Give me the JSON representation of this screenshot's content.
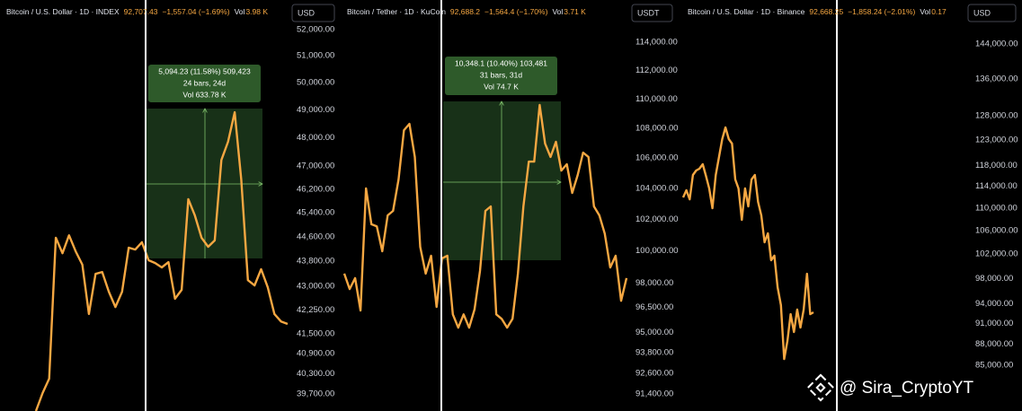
{
  "chart_data": [
    {
      "type": "line",
      "title": "Bitcoin / U.S. Dollar · 1D · INDEX",
      "price": "92,707.43",
      "change": "−1,557.04 (−1.69%)",
      "volume_label": "Vol",
      "volume": "3.98 K",
      "currency": "USD",
      "color": "#f5a742",
      "log_scale": true,
      "ylim": [
        39200,
        53150
      ],
      "yticks": [
        {
          "value": 52000,
          "label": "52,000.00"
        },
        {
          "value": 51000,
          "label": "51,000.00"
        },
        {
          "value": 50000,
          "label": "50,000.00"
        },
        {
          "value": 49000,
          "label": "49,000.00"
        },
        {
          "value": 48000,
          "label": "48,000.00"
        },
        {
          "value": 47000,
          "label": "47,000.00"
        },
        {
          "value": 46200,
          "label": "46,200.00"
        },
        {
          "value": 45400,
          "label": "45,400.00"
        },
        {
          "value": 44600,
          "label": "44,600.00"
        },
        {
          "value": 43800,
          "label": "43,800.00"
        },
        {
          "value": 43000,
          "label": "43,000.00"
        },
        {
          "value": 42250,
          "label": "42,250.00"
        },
        {
          "value": 41500,
          "label": "41,500.00"
        },
        {
          "value": 40900,
          "label": "40,900.00"
        },
        {
          "value": 40300,
          "label": "40,300.00"
        },
        {
          "value": 39700,
          "label": "39,700.00"
        }
      ],
      "values": [
        39200,
        39725,
        40150,
        44570,
        44060,
        44650,
        44120,
        43690,
        42120,
        43390,
        43450,
        42820,
        42340,
        42820,
        44240,
        44180,
        44420,
        43830,
        43740,
        43600,
        43770,
        42600,
        42880,
        45860,
        45310,
        44570,
        44270,
        44480,
        47210,
        47850,
        48910,
        46530,
        43190,
        43020,
        43540,
        42960,
        42120,
        41890,
        41810
      ],
      "measure": [
        "5,094.23 (11.58%) 509,423",
        "24 bars, 24d",
        "Vol 633.78 K"
      ]
    },
    {
      "type": "line",
      "title": "Bitcoin / Tether · 1D · KuCoin",
      "price": "92,688.2",
      "change": "−1,564.4 (−1.70%)",
      "volume_label": "Vol",
      "volume": "3.71 K",
      "currency": "USDT",
      "color": "#f5a742",
      "log_scale": true,
      "ylim": [
        90430,
        117060
      ],
      "yticks": [
        {
          "value": 114000,
          "label": "114,000.00"
        },
        {
          "value": 112000,
          "label": "112,000.00"
        },
        {
          "value": 110000,
          "label": "110,000.00"
        },
        {
          "value": 108000,
          "label": "108,000.00"
        },
        {
          "value": 106000,
          "label": "106,000.00"
        },
        {
          "value": 104000,
          "label": "104,000.00"
        },
        {
          "value": 102000,
          "label": "102,000.00"
        },
        {
          "value": 100000,
          "label": "100,000.00"
        },
        {
          "value": 98000,
          "label": "98,000.00"
        },
        {
          "value": 96500,
          "label": "96,500.00"
        },
        {
          "value": 95000,
          "label": "95,000.00"
        },
        {
          "value": 93800,
          "label": "93,800.00"
        },
        {
          "value": 92600,
          "label": "92,600.00"
        },
        {
          "value": 91400,
          "label": "91,400.00"
        }
      ],
      "values": [
        98580,
        97630,
        98300,
        96320,
        104000,
        101680,
        101550,
        99970,
        102250,
        102540,
        104580,
        107870,
        108300,
        106070,
        100250,
        98580,
        99690,
        96540,
        99530,
        99690,
        96090,
        95290,
        96090,
        95290,
        96380,
        98740,
        102540,
        102830,
        96090,
        95820,
        95290,
        95820,
        98580,
        102830,
        105760,
        105760,
        109590,
        106970,
        106070,
        107090,
        105170,
        105590,
        103700,
        104880,
        106360,
        106070,
        102830,
        102250,
        101090,
        98960,
        99690,
        96910,
        98300
      ],
      "measure": [
        "10,348.1 (10.40%) 103,481",
        "31 bars, 31d",
        "Vol 74.7 K"
      ]
    },
    {
      "type": "line",
      "title": "Bitcoin / U.S. Dollar · 1D · Binance",
      "price": "92,668.25",
      "change": "−1,858.24 (−2.01%)",
      "volume_label": "Vol",
      "volume": "0.17",
      "currency": "USD",
      "color": "#f5a742",
      "log_scale": true,
      "ylim": [
        78850,
        154780
      ],
      "yticks": [
        {
          "value": 144000,
          "label": "144,000.00"
        },
        {
          "value": 136000,
          "label": "136,000.00"
        },
        {
          "value": 128000,
          "label": "128,000.00"
        },
        {
          "value": 123000,
          "label": "123,000.00"
        },
        {
          "value": 118000,
          "label": "118,000.00"
        },
        {
          "value": 114000,
          "label": "114,000.00"
        },
        {
          "value": 110000,
          "label": "110,000.00"
        },
        {
          "value": 106000,
          "label": "106,000.00"
        },
        {
          "value": 102000,
          "label": "102,000.00"
        },
        {
          "value": 98000,
          "label": "98,000.00"
        },
        {
          "value": 94000,
          "label": "94,000.00"
        },
        {
          "value": 91000,
          "label": "91,000.00"
        },
        {
          "value": 88000,
          "label": "88,000.00"
        },
        {
          "value": 85000,
          "label": "85,000.00"
        }
      ],
      "values": [
        111950,
        113270,
        111610,
        116150,
        117010,
        117350,
        118220,
        115980,
        113610,
        109990,
        116150,
        119620,
        123190,
        125570,
        123190,
        122290,
        115300,
        113610,
        107900,
        113610,
        110310,
        115300,
        116150,
        111110,
        108690,
        104000,
        105540,
        100980,
        101740,
        96610,
        93810,
        85870,
        88440,
        92430,
        89760,
        93120,
        90420,
        93120,
        98760,
        92430,
        92710
      ]
    }
  ],
  "watermark": "@ Sira_CryptoYT"
}
